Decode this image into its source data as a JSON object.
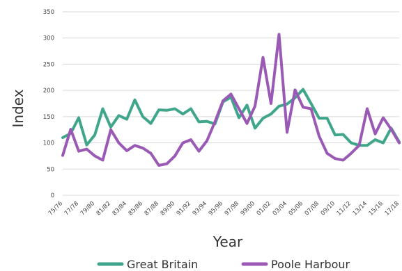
{
  "chart_data": {
    "type": "line",
    "xlabel": "Year",
    "ylabel": "Index",
    "ylim": [
      0,
      350
    ],
    "yticks": [
      0,
      50,
      100,
      150,
      200,
      250,
      300,
      350
    ],
    "grid": true,
    "legend_position": "bottom",
    "categories": [
      "75/76",
      "76/77",
      "77/78",
      "78/79",
      "79/80",
      "80/81",
      "81/82",
      "82/83",
      "83/84",
      "84/85",
      "85/86",
      "86/87",
      "87/88",
      "88/89",
      "89/90",
      "90/91",
      "91/92",
      "92/93",
      "93/94",
      "94/95",
      "95/96",
      "96/97",
      "97/98",
      "98/99",
      "99/00",
      "00/01",
      "01/02",
      "02/03",
      "03/04",
      "04/05",
      "05/06",
      "06/07",
      "07/08",
      "08/09",
      "09/10",
      "10/11",
      "11/12",
      "12/13",
      "13/14",
      "14/15",
      "15/16",
      "16/17",
      "17/18"
    ],
    "xtick_labels": [
      "75/76",
      "77/78",
      "79/80",
      "81/82",
      "83/84",
      "85/86",
      "87/88",
      "89/90",
      "91/92",
      "93/94",
      "95/96",
      "97/98",
      "99/00",
      "01/02",
      "03/04",
      "05/06",
      "07/08",
      "09/10",
      "11/12",
      "13/14",
      "15/16",
      "17/18"
    ],
    "series": [
      {
        "name": "Great Britain",
        "color": "#3fa68b",
        "values": [
          110,
          118,
          148,
          96,
          115,
          165,
          130,
          152,
          145,
          182,
          150,
          137,
          163,
          162,
          165,
          155,
          165,
          140,
          141,
          136,
          178,
          187,
          148,
          172,
          128,
          147,
          155,
          170,
          174,
          186,
          202,
          175,
          147,
          147,
          115,
          116,
          100,
          95,
          95,
          106,
          100,
          128,
          102
        ]
      },
      {
        "name": "Poole Harbour",
        "color": "#9b59b6",
        "values": [
          76,
          126,
          84,
          88,
          75,
          67,
          125,
          100,
          85,
          95,
          90,
          80,
          57,
          60,
          75,
          100,
          106,
          84,
          104,
          140,
          180,
          193,
          165,
          137,
          170,
          263,
          175,
          307,
          120,
          201,
          168,
          165,
          113,
          80,
          70,
          67,
          80,
          95,
          165,
          117,
          148,
          126,
          100
        ]
      }
    ]
  }
}
